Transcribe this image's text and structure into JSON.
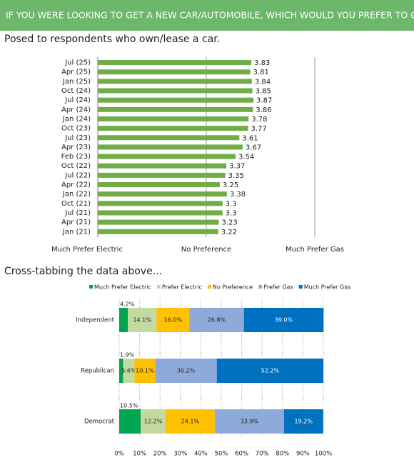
{
  "header": "IF YOU WERE LOOKING TO GET A NEW CAR/AUTOMOBILE, WHICH WOULD YOU PREFER TO GET?",
  "chart_data": [
    {
      "type": "bar",
      "title": "Posed to respondents who own/lease a car.",
      "categories": [
        "Jul (25)",
        "Apr (25)",
        "Jan (25)",
        "Oct (24)",
        "Jul (24)",
        "Apr (24)",
        "Jan (24)",
        "Oct (23)",
        "Jul (23)",
        "Apr (23)",
        "Feb (23)",
        "Oct (22)",
        "Jul (22)",
        "Apr (22)",
        "Jan (22)",
        "Oct (21)",
        "Jul (21)",
        "Apr (21)",
        "Jan (21)"
      ],
      "values": [
        3.83,
        3.81,
        3.84,
        3.85,
        3.87,
        3.86,
        3.78,
        3.77,
        3.61,
        3.67,
        3.54,
        3.37,
        3.35,
        3.25,
        3.38,
        3.3,
        3.3,
        3.23,
        3.22
      ],
      "color": "#70ad47",
      "xlim": [
        1,
        5
      ],
      "xticks": [
        {
          "value": 1,
          "label": "Much Prefer Electric"
        },
        {
          "value": 3,
          "label": "No Preference"
        },
        {
          "value": 5,
          "label": "Much Prefer Gas"
        }
      ]
    },
    {
      "type": "stacked_bar",
      "title": "Cross-tabbing the data above...",
      "categories": [
        "Independent",
        "Republican",
        "Democrat"
      ],
      "series": [
        {
          "name": "Much Prefer Electric",
          "color": "#00a64f",
          "values": [
            4.2,
            1.9,
            10.5
          ],
          "value_labels": [
            "4.2%",
            "1.9%",
            "10.5%"
          ]
        },
        {
          "name": "Prefer Electric",
          "color": "#c4d9a0",
          "values": [
            14.1,
            5.6,
            12.2
          ],
          "value_labels": [
            "14.1%",
            "5.6%",
            "12.2%"
          ]
        },
        {
          "name": "No Preference",
          "color": "#ffc000",
          "values": [
            16.0,
            10.1,
            24.1
          ],
          "value_labels": [
            "16.0%",
            "10.1%",
            "24.1%"
          ]
        },
        {
          "name": "Prefer Gas",
          "color": "#8eaadb",
          "values": [
            26.8,
            30.2,
            33.9
          ],
          "value_labels": [
            "26.8%",
            "30.2%",
            "33.9%"
          ]
        },
        {
          "name": "Much Prefer Gas",
          "color": "#0070c0",
          "values": [
            39.0,
            52.2,
            19.2
          ],
          "value_labels": [
            "39.0%",
            "52.2%",
            "19.2%"
          ]
        }
      ],
      "xlim": [
        0,
        100
      ],
      "xticks": [
        {
          "value": 0,
          "label": "0%"
        },
        {
          "value": 10,
          "label": "10%"
        },
        {
          "value": 20,
          "label": "20%"
        },
        {
          "value": 30,
          "label": "30%"
        },
        {
          "value": 40,
          "label": "40%"
        },
        {
          "value": 50,
          "label": "50%"
        },
        {
          "value": 60,
          "label": "60%"
        },
        {
          "value": 70,
          "label": "70%"
        },
        {
          "value": 80,
          "label": "80%"
        },
        {
          "value": 90,
          "label": "90%"
        },
        {
          "value": 100,
          "label": "100%"
        }
      ],
      "grid": true,
      "legend": "top"
    }
  ]
}
